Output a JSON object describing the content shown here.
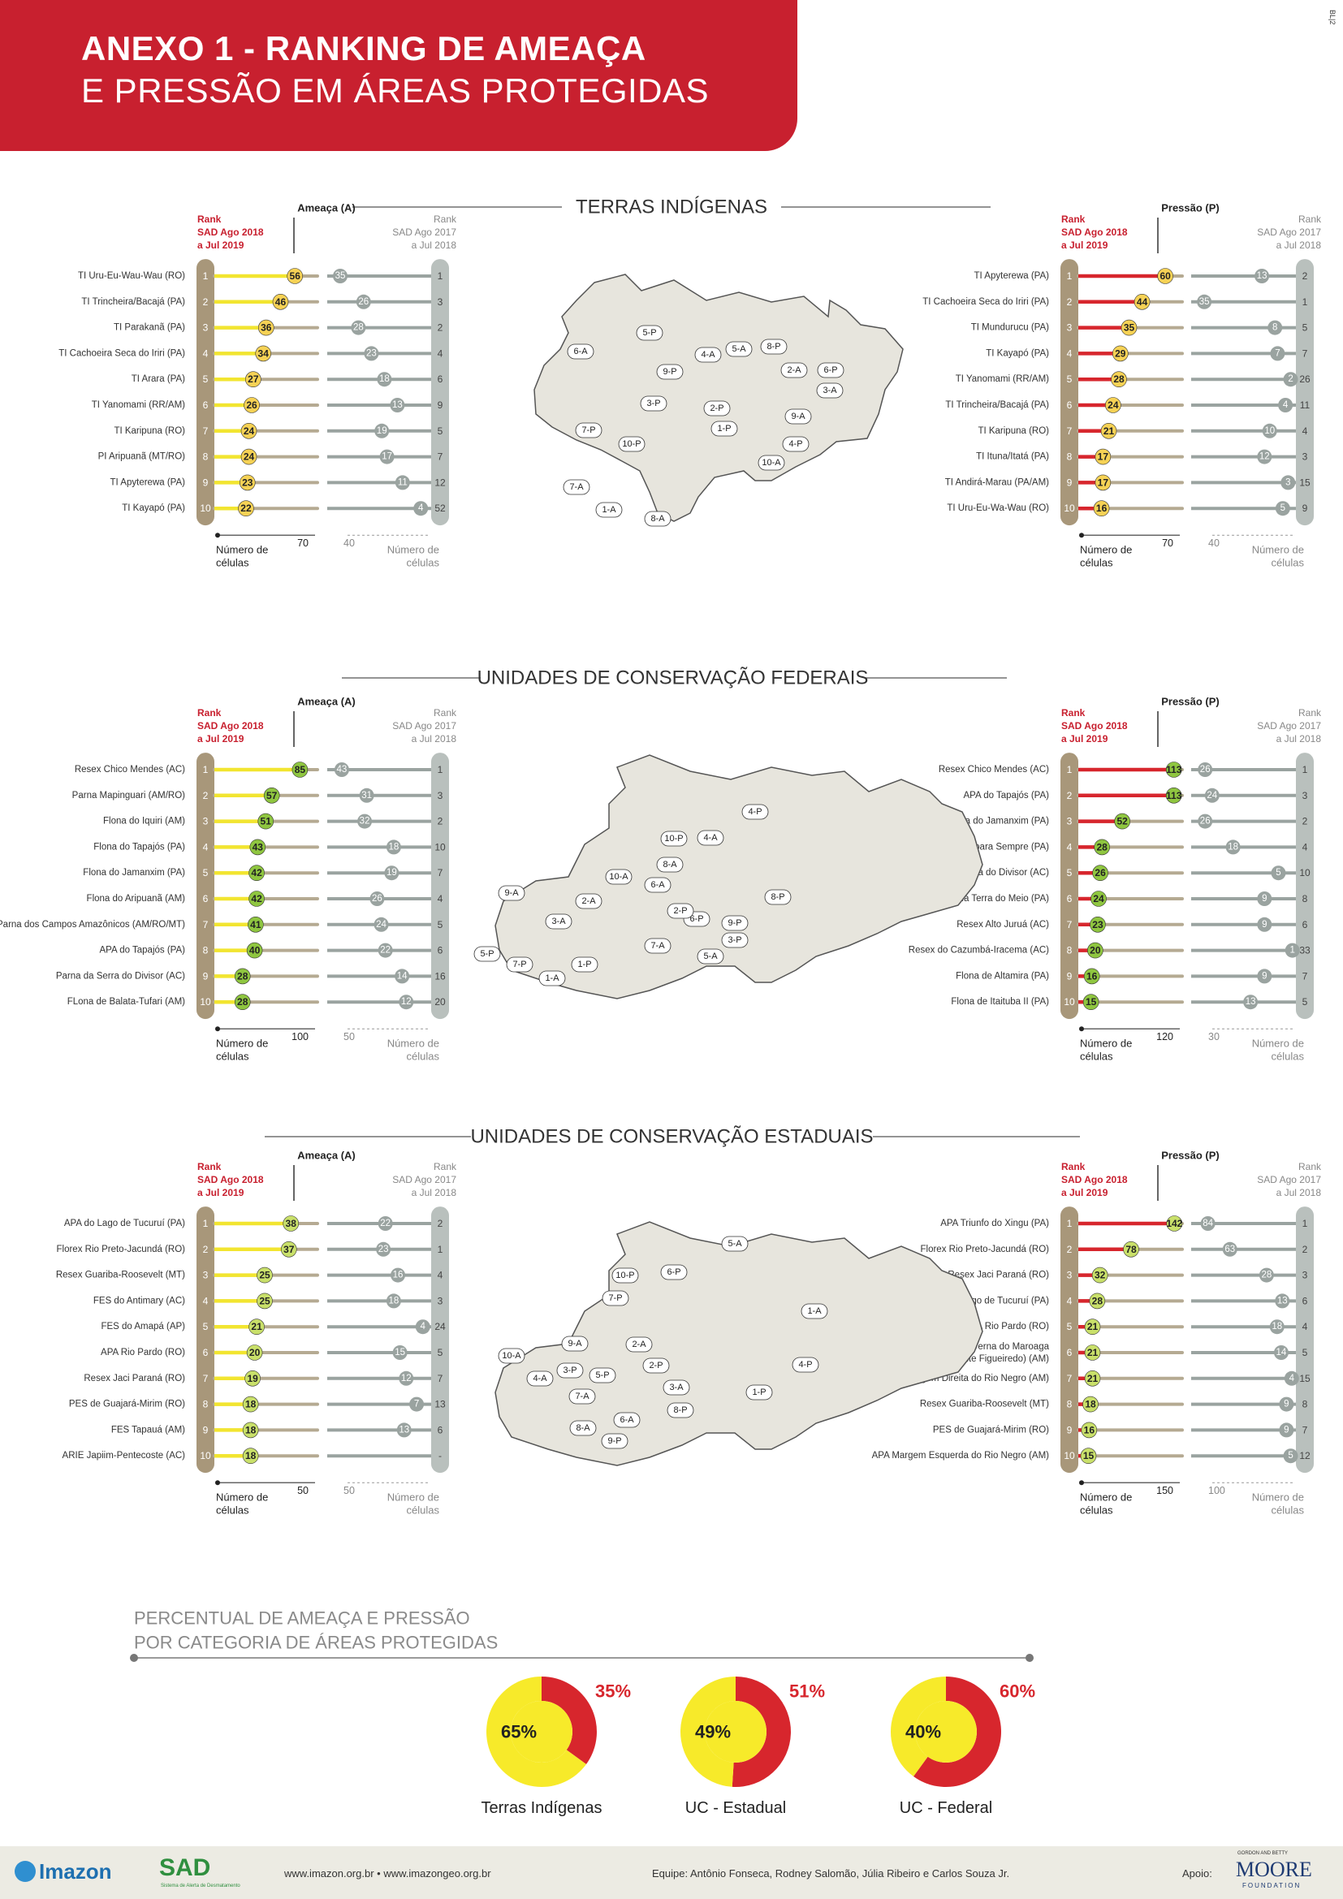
{
  "header": {
    "title_bold": "ANEXO 1",
    "title_rest": " - RANKING DE AMEAÇA",
    "title_line2": "E PRESSÃO EM ÁREAS PROTEGIDAS",
    "corner_code": "BL|2"
  },
  "labels": {
    "rank_l1": "Rank",
    "rank_2018_l2": "SAD Ago 2018",
    "rank_2018_l3": "a Jul 2019",
    "rank_2017_l2": "SAD Ago 2017",
    "rank_2017_l3": "a Jul 2018",
    "ameaca": "Ameaça (A)",
    "pressao": "Pressão (P)",
    "cells_l1": "Número de",
    "cells_l2": "células"
  },
  "colors": {
    "brand_red": "#c8202f",
    "threat_bar": "#f2e530",
    "pressure_bar": "#d7262d",
    "ti_circle": "#f6d255",
    "uc_fed_circle": "#8fc640",
    "uc_est_circle": "#c9e06a",
    "prev_bar": "#9aa3a0",
    "map_fill": "#e7e5dd"
  },
  "chart_data": [
    {
      "type": "bar",
      "section": "TERRAS INDÍGENAS",
      "side": "Ameaça (A)",
      "max_current": 70,
      "max_previous": 40,
      "categories": [
        "TI Uru-Eu-Wau-Wau (RO)",
        "TI Trincheira/Bacajá (PA)",
        "TI Parakanã (PA)",
        "TI Cachoeira Seca do Iriri (PA)",
        "TI Arara (PA)",
        "TI Yanomami (RR/AM)",
        "TI Karipuna (RO)",
        "PI Aripuanã (MT/RO)",
        "TI Apyterewa (PA)",
        "TI Kayapó (PA)"
      ],
      "rank_current": [
        "1",
        "2",
        "3",
        "4",
        "5",
        "6",
        "7",
        "8",
        "9",
        "10"
      ],
      "values_current": [
        56,
        46,
        36,
        34,
        27,
        26,
        24,
        24,
        23,
        22
      ],
      "values_previous": [
        35,
        26,
        28,
        23,
        18,
        13,
        19,
        17,
        11,
        4
      ],
      "rank_previous": [
        "1",
        "3",
        "2",
        "4",
        "6",
        "9",
        "5",
        "7",
        "12",
        "52"
      ]
    },
    {
      "type": "bar",
      "section": "TERRAS INDÍGENAS",
      "side": "Pressão (P)",
      "max_current": 70,
      "max_previous": 40,
      "categories": [
        "TI Apyterewa (PA)",
        "TI Cachoeira Seca do Iriri (PA)",
        "TI Mundurucu (PA)",
        "TI Kayapó (PA)",
        "TI Yanomami (RR/AM)",
        "TI Trincheira/Bacajá (PA)",
        "TI Karipuna (RO)",
        "TI Ituna/Itatá (PA)",
        "TI Andirá-Marau (PA/AM)",
        "TI Uru-Eu-Wa-Wau (RO)"
      ],
      "rank_current": [
        "1",
        "2",
        "3",
        "4",
        "5",
        "6",
        "7",
        "8",
        "9",
        "10"
      ],
      "values_current": [
        60,
        44,
        35,
        29,
        28,
        24,
        21,
        17,
        17,
        16
      ],
      "values_previous": [
        13,
        35,
        8,
        7,
        2,
        4,
        10,
        12,
        3,
        5
      ],
      "rank_previous": [
        "2",
        "1",
        "5",
        "7",
        "26",
        "11",
        "4",
        "3",
        "15",
        "9"
      ]
    },
    {
      "type": "bar",
      "section": "UNIDADES DE CONSERVAÇÃO FEDERAIS",
      "side": "Ameaça (A)",
      "max_current": 100,
      "max_previous": 50,
      "categories": [
        "Resex Chico Mendes (AC)",
        "Parna Mapinguari (AM/RO)",
        "Flona do Iquiri (AM)",
        "Flona do Tapajós (PA)",
        "Flona do Jamanxim (PA)",
        "Flona do Aripuanã (AM)",
        "Parna dos Campos Amazônicos (AM/RO/MT)",
        "APA do Tapajós (PA)",
        "Parna da Serra do Divisor (AC)",
        "FLona de Balata-Tufari (AM)"
      ],
      "rank_current": [
        "1",
        "2",
        "3",
        "4",
        "5",
        "6",
        "7",
        "8",
        "9",
        "10"
      ],
      "values_current": [
        85,
        57,
        51,
        43,
        42,
        42,
        41,
        40,
        28,
        28
      ],
      "values_previous": [
        43,
        31,
        32,
        18,
        19,
        26,
        24,
        22,
        14,
        12
      ],
      "rank_previous": [
        "1",
        "3",
        "2",
        "10",
        "7",
        "4",
        "5",
        "6",
        "16",
        "20"
      ]
    },
    {
      "type": "bar",
      "section": "UNIDADES DE CONSERVAÇÃO FEDERAIS",
      "side": "Pressão (P)",
      "max_current": 120,
      "max_previous": 30,
      "categories": [
        "Resex Chico Mendes (AC)",
        "APA do Tapajós (PA)",
        "Flona do Jamanxim (PA)",
        "Resex Verde para Sempre (PA)",
        "Parna da Serra do Divisor (AC)",
        "Esec da Terra do Meio (PA)",
        "Resex Alto Juruá (AC)",
        "Resex do Cazumbá-Iracema (AC)",
        "Flona de Altamira (PA)",
        "Flona de Itaituba II (PA)"
      ],
      "rank_current": [
        "1",
        "2",
        "3",
        "4",
        "5",
        "6",
        "7",
        "8",
        "9",
        "10"
      ],
      "values_current": [
        113,
        113,
        52,
        28,
        26,
        24,
        23,
        20,
        16,
        15
      ],
      "values_previous": [
        26,
        24,
        26,
        18,
        5,
        9,
        9,
        1,
        9,
        13
      ],
      "rank_previous": [
        "1",
        "3",
        "2",
        "4",
        "10",
        "8",
        "6",
        "33",
        "7",
        "5"
      ]
    },
    {
      "type": "bar",
      "section": "UNIDADES DE CONSERVAÇÃO ESTADUAIS",
      "side": "Ameaça (A)",
      "max_current": 50,
      "max_previous": 50,
      "categories": [
        "APA do Lago de Tucuruí (PA)",
        "Florex Rio Preto-Jacundá (RO)",
        "Resex Guariba-Roosevelt (MT)",
        "FES do Antimary (AC)",
        "FES do Amapá (AP)",
        "APA Rio Pardo (RO)",
        "Resex Jaci Paraná (RO)",
        "PES de Guajará-Mirim (RO)",
        "FES Tapauá (AM)",
        "ARIE Japiim-Pentecoste (AC)"
      ],
      "rank_current": [
        "1",
        "2",
        "3",
        "4",
        "5",
        "6",
        "7",
        "8",
        "9",
        "10"
      ],
      "values_current": [
        38,
        37,
        25,
        25,
        21,
        20,
        19,
        18,
        18,
        18
      ],
      "values_previous": [
        22,
        23,
        16,
        18,
        4,
        15,
        12,
        7,
        13,
        null
      ],
      "rank_previous": [
        "2",
        "1",
        "4",
        "3",
        "24",
        "5",
        "7",
        "13",
        "6",
        "-"
      ]
    },
    {
      "type": "bar",
      "section": "UNIDADES DE CONSERVAÇÃO ESTADUAIS",
      "side": "Pressão (P)",
      "max_current": 150,
      "max_previous": 100,
      "categories": [
        "APA Triunfo do Xingu (PA)",
        "Florex Rio Preto-Jacundá (RO)",
        "Resex Jaci Paraná (RO)",
        "APA do Lago de Tucuruí (PA)",
        "APA Rio Pardo (RO)",
        "APA Caverna do Maroaga|(Presidente Figueiredo) (AM)",
        "APA Margem Direita do Rio Negro (AM)",
        "Resex Guariba-Roosevelt (MT)",
        "PES de Guajará-Mirim (RO)",
        "APA Margem Esquerda do Rio Negro (AM)"
      ],
      "rank_current": [
        "1",
        "2",
        "3",
        "4",
        "5",
        "6",
        "7",
        "8",
        "9",
        "10"
      ],
      "values_current": [
        142,
        78,
        32,
        28,
        21,
        21,
        21,
        18,
        16,
        15
      ],
      "values_previous": [
        84,
        63,
        28,
        13,
        18,
        14,
        4,
        9,
        9,
        5
      ],
      "rank_previous": [
        "1",
        "2",
        "3",
        "6",
        "4",
        "5",
        "15",
        "8",
        "7",
        "12"
      ]
    },
    {
      "type": "pie",
      "title": "PERCENTUAL DE AMEAÇA E PRESSÃO",
      "title_line2": "POR CATEGORIA DE ÁREAS PROTEGIDAS",
      "charts": [
        {
          "name": "Terras Indígenas",
          "threat_pct": 65,
          "pressure_pct": 35,
          "threat_label": "65%",
          "pressure_label": "35%"
        },
        {
          "name": "UC - Estadual",
          "threat_pct": 49,
          "pressure_pct": 51,
          "threat_label": "49%",
          "pressure_label": "51%"
        },
        {
          "name": "UC - Federal",
          "threat_pct": 40,
          "pressure_pct": 60,
          "threat_label": "40%",
          "pressure_label": "60%"
        }
      ]
    }
  ],
  "maps": [
    {
      "section": "TERRAS INDÍGENAS",
      "labels": [
        "5-P",
        "6-A",
        "9-P",
        "4-A",
        "5-A",
        "8-P",
        "2-A",
        "6-P",
        "3-A",
        "3-P",
        "2-P",
        "1-P",
        "9-A",
        "4-P",
        "10-A",
        "7-P",
        "10-P",
        "7-A",
        "1-A",
        "8-A"
      ]
    },
    {
      "section": "UNIDADES DE CONSERVAÇÃO FEDERAIS",
      "labels": [
        "4-P",
        "10-P",
        "4-A",
        "8-A",
        "10-A",
        "6-A",
        "2-A",
        "9-A",
        "3-A",
        "8-P",
        "6-P",
        "2-P",
        "9-P",
        "3-P",
        "7-A",
        "5-A",
        "5-P",
        "7-P",
        "1-A",
        "1-P"
      ]
    },
    {
      "section": "UNIDADES DE CONSERVAÇÃO ESTADUAIS",
      "labels": [
        "5-A",
        "6-P",
        "10-P",
        "7-P",
        "1-A",
        "9-A",
        "2-A",
        "2-P",
        "10-A",
        "4-A",
        "3-P",
        "5-P",
        "3-A",
        "1-P",
        "4-P",
        "7-A",
        "8-P",
        "6-A",
        "8-A",
        "9-P"
      ]
    }
  ],
  "footer": {
    "imazon": "Imazon",
    "sad": "SAD",
    "sad_sub": "Sistema de Alerta de Desmatamento",
    "sites": "www.imazon.org.br • www.imazongeo.org.br",
    "team": "Equipe: Antônio Fonseca, Rodney Salomão, Júlia Ribeiro e Carlos Souza Jr.",
    "apoio": "Apoio:",
    "moore_small": "GORDON AND BETTY",
    "moore": "MOORE",
    "moore_foundation": "FOUNDATION"
  }
}
